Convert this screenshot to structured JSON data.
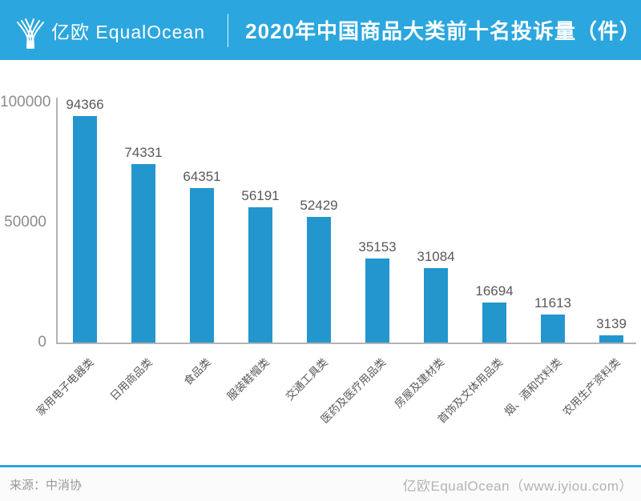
{
  "header": {
    "logo_text": "亿欧 EqualOcean",
    "title": "2020年中国商品大类前十名投诉量（件）"
  },
  "footer": {
    "source": "来源：中消协",
    "brand": "亿欧EqualOcean（www.iyiou.com）"
  },
  "colors": {
    "header_bg": "#2BA6DE",
    "bar": "#2396CE",
    "axis_gray": "#b3b3b3",
    "divider_line": "#2BA6DE",
    "value_label": "#595959",
    "tick_label": "#8c8c8c"
  },
  "chart_data": {
    "type": "bar",
    "title": "2020年中国商品大类前十名投诉量（件）",
    "categories": [
      "家用电子电器类",
      "日用商品类",
      "食品类",
      "服装鞋帽类",
      "交通工具类",
      "医药及医疗用品类",
      "房屋及建材类",
      "首饰及文体用品类",
      "烟、酒和饮料类",
      "农用生产资料类"
    ],
    "values": [
      94366,
      74331,
      64351,
      56191,
      52429,
      35153,
      31084,
      16694,
      11613,
      3139
    ],
    "xlabel": "",
    "ylabel": "",
    "ylim": [
      0,
      100000
    ],
    "yticks": [
      0,
      50000,
      100000
    ],
    "ytick_labels": [
      "0",
      "50000",
      "100000"
    ],
    "grid": false,
    "legend": "none",
    "value_labels_shown": true,
    "bar_color": "#2396CE",
    "x_tick_rotation_deg": 45,
    "source_note": "来源：中消协"
  }
}
